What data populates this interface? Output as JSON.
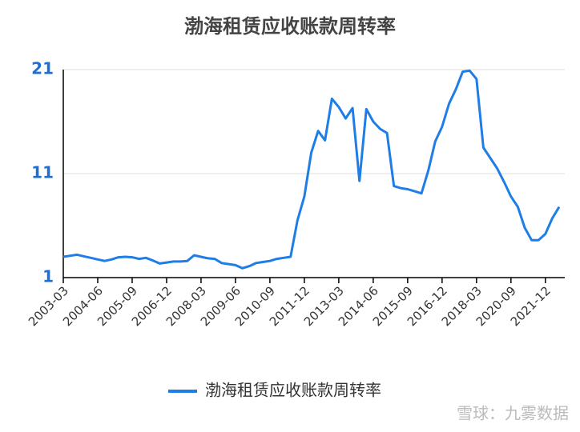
{
  "chart_data": {
    "type": "line",
    "title": "渤海租赁应收账款周转率",
    "watermark": "雪球：九雾数据",
    "categories": [
      "2003-03",
      null,
      null,
      null,
      null,
      "2004-06",
      null,
      null,
      null,
      null,
      "2005-09",
      null,
      null,
      null,
      null,
      "2006-12",
      null,
      null,
      null,
      null,
      "2008-03",
      null,
      null,
      null,
      null,
      "2009-06",
      null,
      null,
      null,
      null,
      "2010-09",
      null,
      null,
      null,
      null,
      "2011-12",
      null,
      null,
      null,
      null,
      "2013-03",
      null,
      null,
      null,
      null,
      "2014-06",
      null,
      null,
      null,
      null,
      "2015-09",
      null,
      null,
      null,
      null,
      "2016-12",
      null,
      null,
      null,
      null,
      "2018-03",
      null,
      null,
      null,
      null,
      "2020-09",
      null,
      null,
      null,
      null,
      "2021-12",
      null,
      null
    ],
    "series": [
      {
        "name": "渤海租赁应收账款周转率",
        "color": "#1f7de6",
        "values": [
          3.0,
          3.1,
          3.2,
          3.05,
          2.9,
          2.75,
          2.6,
          2.75,
          2.95,
          3.0,
          2.95,
          2.8,
          2.9,
          2.65,
          2.35,
          2.45,
          2.55,
          2.55,
          2.6,
          3.15,
          3.0,
          2.85,
          2.8,
          2.4,
          2.3,
          2.2,
          1.9,
          2.1,
          2.4,
          2.5,
          2.6,
          2.8,
          2.9,
          3.0,
          6.5,
          8.8,
          13.0,
          15.1,
          14.2,
          18.2,
          17.4,
          16.3,
          17.3,
          10.3,
          17.2,
          16.0,
          15.3,
          14.9,
          9.8,
          9.6,
          9.5,
          9.3,
          9.1,
          11.3,
          14.1,
          15.5,
          17.7,
          19.1,
          20.8,
          20.9,
          20.1,
          13.5,
          12.5,
          11.5,
          10.2,
          8.8,
          7.8,
          5.8,
          4.6,
          4.6,
          5.2,
          6.7,
          7.8
        ]
      }
    ],
    "ylim": [
      1,
      21
    ],
    "yticks": [
      1,
      11,
      21
    ],
    "grid": true,
    "legend": "bottom"
  }
}
